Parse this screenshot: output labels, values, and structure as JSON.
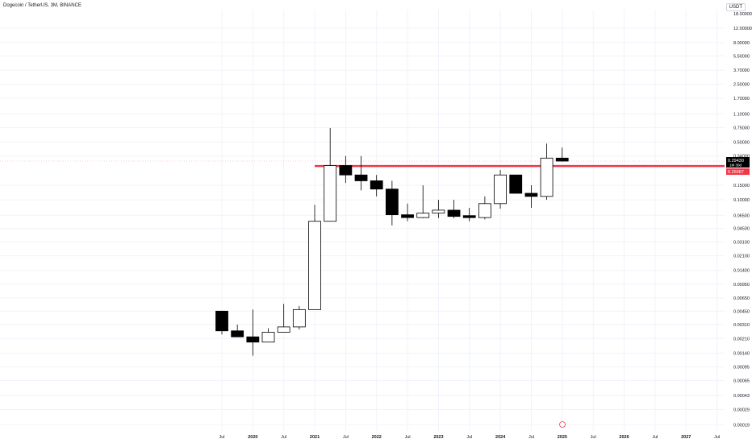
{
  "header": {
    "title": "Dogecoin / TetherUS, 3M, BINANCE",
    "currency": "USDT"
  },
  "price_axis": {
    "ticks": [
      "12.00000",
      "8.00000",
      "5.50000",
      "3.70000",
      "2.50000",
      "1.70000",
      "1.10000",
      "0.75000",
      "0.50000",
      "0.34000",
      "0.15000",
      "0.10000",
      "0.06500",
      "0.04500",
      "0.03100",
      "0.02100",
      "0.01400",
      "0.00950",
      "0.00650",
      "0.00450",
      "0.00310",
      "0.00210",
      "0.00140",
      "0.00095",
      "0.00065",
      "0.00043",
      "0.00029",
      "0.00019"
    ],
    "top_tick": "18.00000",
    "last_price": {
      "label": "0.29430",
      "sub": "1M 30d",
      "value": 0.2943
    },
    "level_tag": {
      "label": "0.25687",
      "value": 0.25687
    }
  },
  "time_axis": {
    "labels": [
      "Jul",
      "2020",
      "Jul",
      "2021",
      "Jul",
      "2022",
      "Jul",
      "2023",
      "Jul",
      "2024",
      "Jul",
      "2025",
      "Jul",
      "2026",
      "Jul",
      "2027",
      "Jul"
    ]
  },
  "colors": {
    "up_fill": "#ffffff",
    "down_fill": "#000000",
    "wick": "#000000",
    "level_line": "#f23645",
    "last_price_bg": "#000000"
  },
  "chart_data": {
    "type": "candlestick",
    "title": "Dogecoin / TetherUS, 3M, BINANCE",
    "y_scale": "log",
    "ylim": [
      0.00016,
      20
    ],
    "grid": true,
    "horizontal_level": 0.25687,
    "candles": [
      {
        "period": "2019 Q3",
        "open": 0.0045,
        "high": 0.0045,
        "low": 0.00235,
        "close": 0.0026
      },
      {
        "period": "2019 Q4",
        "open": 0.0026,
        "high": 0.0031,
        "low": 0.0022,
        "close": 0.0022
      },
      {
        "period": "2020 Q1",
        "open": 0.0022,
        "high": 0.0047,
        "low": 0.0013,
        "close": 0.0019
      },
      {
        "period": "2020 Q2",
        "open": 0.0019,
        "high": 0.0028,
        "low": 0.0019,
        "close": 0.0025
      },
      {
        "period": "2020 Q3",
        "open": 0.0025,
        "high": 0.0055,
        "low": 0.0025,
        "close": 0.0029
      },
      {
        "period": "2020 Q4",
        "open": 0.0029,
        "high": 0.0052,
        "low": 0.0027,
        "close": 0.0047
      },
      {
        "period": "2021 Q1",
        "open": 0.0047,
        "high": 0.087,
        "low": 0.0047,
        "close": 0.055
      },
      {
        "period": "2021 Q2",
        "open": 0.055,
        "high": 0.74,
        "low": 0.055,
        "close": 0.26
      },
      {
        "period": "2021 Q3",
        "open": 0.26,
        "high": 0.34,
        "low": 0.16,
        "close": 0.2
      },
      {
        "period": "2021 Q4",
        "open": 0.2,
        "high": 0.34,
        "low": 0.13,
        "close": 0.17
      },
      {
        "period": "2022 Q1",
        "open": 0.17,
        "high": 0.2,
        "low": 0.11,
        "close": 0.135
      },
      {
        "period": "2022 Q2",
        "open": 0.135,
        "high": 0.17,
        "low": 0.049,
        "close": 0.066
      },
      {
        "period": "2022 Q3",
        "open": 0.066,
        "high": 0.09,
        "low": 0.055,
        "close": 0.061
      },
      {
        "period": "2022 Q4",
        "open": 0.061,
        "high": 0.15,
        "low": 0.06,
        "close": 0.069
      },
      {
        "period": "2023 Q1",
        "open": 0.069,
        "high": 0.1,
        "low": 0.06,
        "close": 0.075
      },
      {
        "period": "2023 Q2",
        "open": 0.075,
        "high": 0.1,
        "low": 0.06,
        "close": 0.063
      },
      {
        "period": "2023 Q3",
        "open": 0.063,
        "high": 0.08,
        "low": 0.055,
        "close": 0.061
      },
      {
        "period": "2023 Q4",
        "open": 0.061,
        "high": 0.11,
        "low": 0.058,
        "close": 0.09
      },
      {
        "period": "2024 Q1",
        "open": 0.09,
        "high": 0.23,
        "low": 0.078,
        "close": 0.2
      },
      {
        "period": "2024 Q2",
        "open": 0.2,
        "high": 0.2,
        "low": 0.12,
        "close": 0.12
      },
      {
        "period": "2024 Q3",
        "open": 0.12,
        "high": 0.15,
        "low": 0.08,
        "close": 0.11
      },
      {
        "period": "2024 Q4",
        "open": 0.11,
        "high": 0.48,
        "low": 0.1,
        "close": 0.32
      },
      {
        "period": "2025 Q1",
        "open": 0.32,
        "high": 0.43,
        "low": 0.29,
        "close": 0.2943
      }
    ]
  }
}
